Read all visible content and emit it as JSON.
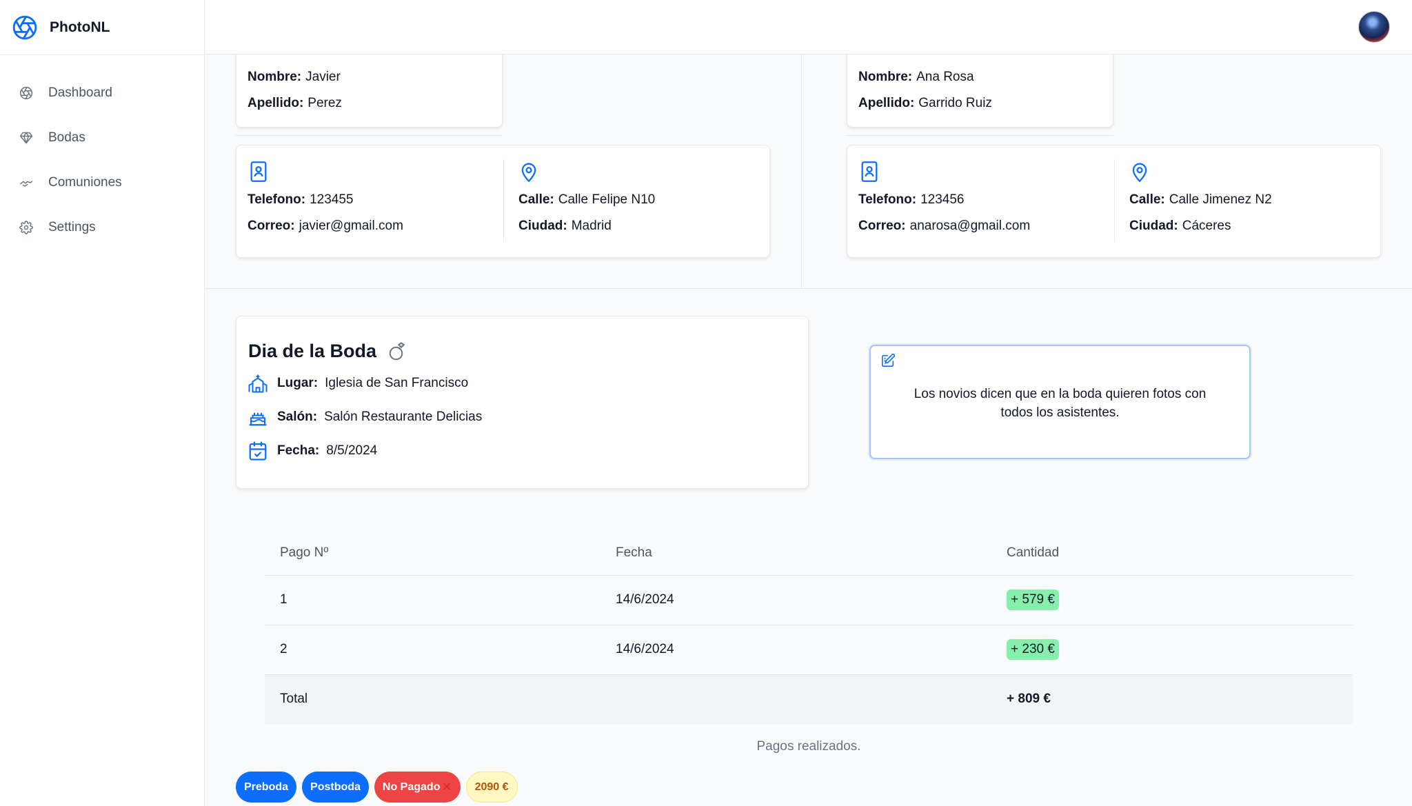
{
  "app": {
    "name": "PhotoNL",
    "accent": "#0d6efd"
  },
  "sidebar": {
    "items": [
      {
        "label": "Dashboard",
        "icon": "aperture-icon"
      },
      {
        "label": "Bodas",
        "icon": "diamond-icon"
      },
      {
        "label": "Comuniones",
        "icon": "handshake-icon"
      },
      {
        "label": "Settings",
        "icon": "gear-icon"
      }
    ]
  },
  "people": [
    {
      "name_label": "Nombre:",
      "name": "Javier",
      "surname_label": "Apellido:",
      "surname": "Perez",
      "phone_label": "Telefono:",
      "phone": "123455",
      "email_label": "Correo:",
      "email": "javier@gmail.com",
      "street_label": "Calle:",
      "street": "Calle Felipe N10",
      "city_label": "Ciudad:",
      "city": "Madrid"
    },
    {
      "name_label": "Nombre:",
      "name": "Ana Rosa",
      "surname_label": "Apellido:",
      "surname": "Garrido Ruiz",
      "phone_label": "Telefono:",
      "phone": "123456",
      "email_label": "Correo:",
      "email": "anarosa@gmail.com",
      "street_label": "Calle:",
      "street": "Calle Jimenez N2",
      "city_label": "Ciudad:",
      "city": "Cáceres"
    }
  ],
  "event": {
    "title": "Dia de la Boda",
    "title_icon": "ring-icon",
    "place_label": "Lugar:",
    "place": "Iglesia de San Francisco",
    "hall_label": "Salón:",
    "hall": "Salón Restaurante Delicias",
    "date_label": "Fecha:",
    "date": "8/5/2024"
  },
  "note": {
    "text": "Los novios dicen que en la boda quieren fotos con todos los asistentes."
  },
  "payments": {
    "headers": [
      "Pago Nº",
      "Fecha",
      "Cantidad"
    ],
    "rows": [
      {
        "num": "1",
        "date": "14/6/2024",
        "amount": "+ 579 €"
      },
      {
        "num": "2",
        "date": "14/6/2024",
        "amount": "+ 230 €"
      }
    ],
    "total_label": "Total",
    "total": "+ 809 €",
    "caption": "Pagos realizados."
  },
  "badges": {
    "preboda": "Preboda",
    "postboda": "Postboda",
    "status": "No Pagado",
    "price": "2090 €"
  }
}
